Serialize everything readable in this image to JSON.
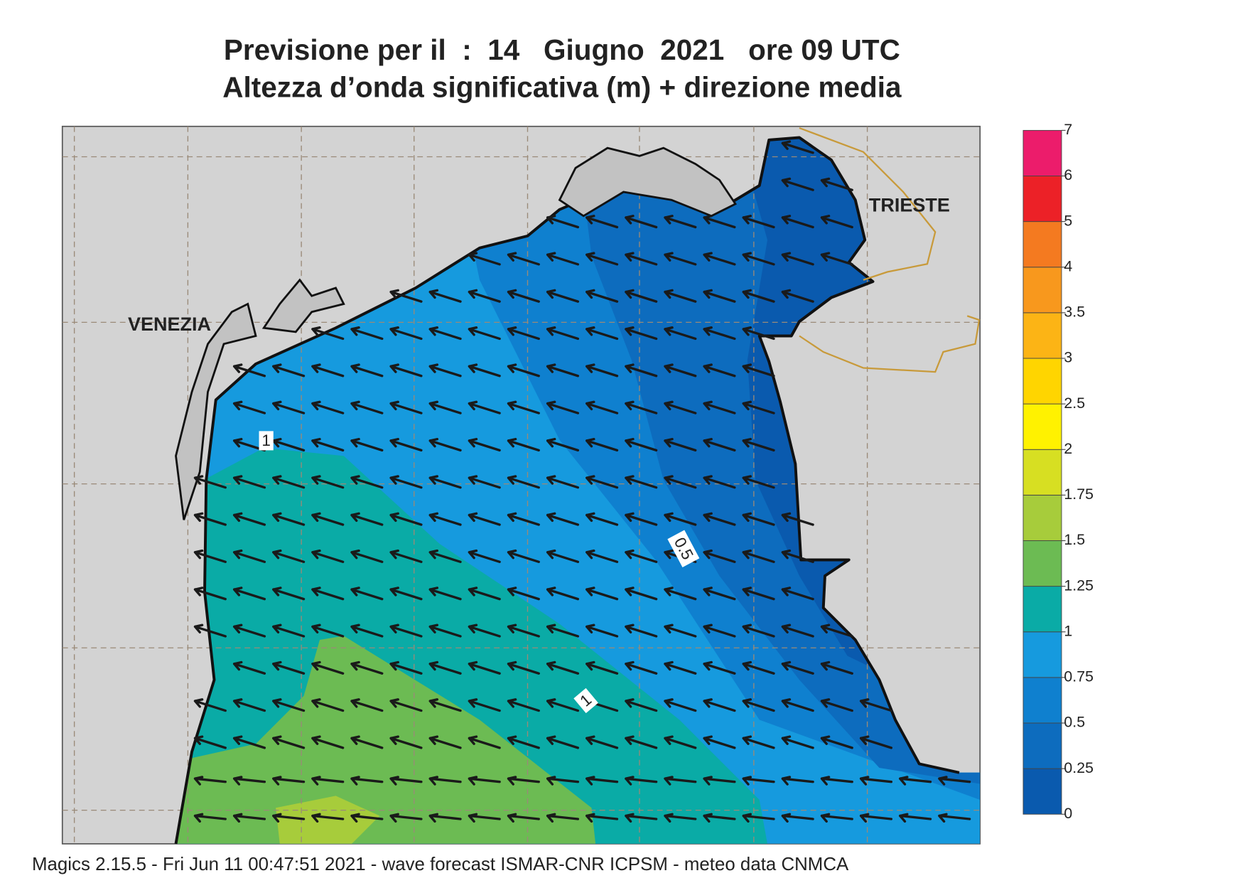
{
  "header": {
    "title": "Previsione per il  :  14   Giugno  2021   ore 09 UTC",
    "subtitle": "Altezza d’onda significativa (m) + direzione media"
  },
  "map": {
    "places": [
      "VENEZIA",
      "TRIESTE"
    ],
    "contour_labels": [
      "1",
      "0.5",
      "1"
    ]
  },
  "legend": {
    "levels": [
      0,
      0.25,
      0.5,
      0.75,
      1,
      1.25,
      1.5,
      1.75,
      2,
      2.5,
      3,
      3.5,
      4,
      5,
      6,
      7
    ],
    "colors": [
      "#0a5aae",
      "#0d6cbe",
      "#0f80cf",
      "#169ade",
      "#0aaba6",
      "#6cbb53",
      "#a7cc3b",
      "#d7df22",
      "#fff200",
      "#ffd500",
      "#fcb415",
      "#f8981d",
      "#f47a20",
      "#ec2127",
      "#ec1c6b"
    ]
  },
  "footer": "Magics 2.15.5 - Fri Jun 11 00:47:51 2021 - wave forecast  ISMAR-CNR  ICPSM - meteo data   CNMCA"
}
